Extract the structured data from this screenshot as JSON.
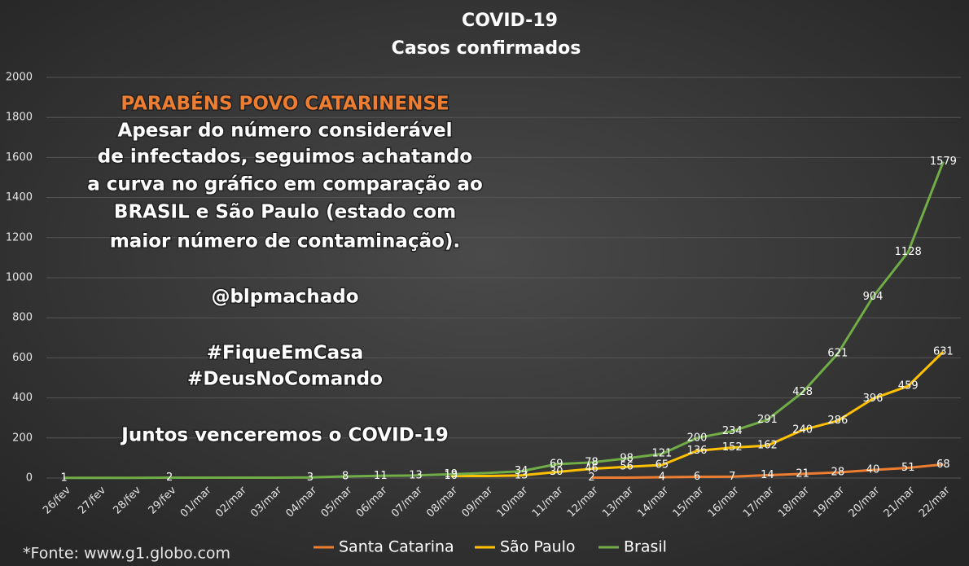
{
  "chart_data": {
    "type": "line",
    "title": "COVID-19",
    "subtitle": "Casos confirmados",
    "categories": [
      "26/fev",
      "27/fev",
      "28/fev",
      "29/fev",
      "01/mar",
      "02/mar",
      "03/mar",
      "04/mar",
      "05/mar",
      "06/mar",
      "07/mar",
      "08/mar",
      "09/mar",
      "10/mar",
      "11/mar",
      "12/mar",
      "13/mar",
      "14/mar",
      "15/mar",
      "16/mar",
      "17/mar",
      "18/mar",
      "19/mar",
      "20/mar",
      "21/mar",
      "22/mar"
    ],
    "series": [
      {
        "name": "Santa Catarina",
        "color": "#ed7d31",
        "values": [
          null,
          null,
          null,
          null,
          null,
          null,
          null,
          null,
          null,
          null,
          null,
          null,
          null,
          null,
          null,
          2,
          2,
          4,
          6,
          7,
          14,
          21,
          28,
          40,
          51,
          68
        ],
        "value_labels": [
          null,
          null,
          null,
          null,
          null,
          null,
          null,
          null,
          null,
          null,
          null,
          null,
          null,
          null,
          null,
          "2",
          null,
          "4",
          "6",
          "7",
          "14",
          "21",
          "28",
          "40",
          "51",
          "68"
        ]
      },
      {
        "name": "São Paulo",
        "color": "#ffc000",
        "values": [
          null,
          null,
          null,
          null,
          null,
          null,
          null,
          null,
          null,
          null,
          null,
          10,
          10,
          13,
          30,
          46,
          56,
          65,
          136,
          152,
          162,
          240,
          286,
          396,
          459,
          631
        ],
        "value_labels": [
          null,
          null,
          null,
          null,
          null,
          null,
          null,
          null,
          null,
          null,
          null,
          "10",
          null,
          "13",
          "30",
          "46",
          "56",
          "65",
          "136",
          "152",
          "162",
          "240",
          "286",
          "396",
          "459",
          "631"
        ]
      },
      {
        "name": "Brasil",
        "color": "#70ad47",
        "values": [
          1,
          1,
          1,
          2,
          2,
          2,
          2,
          3,
          8,
          11,
          13,
          19,
          25,
          34,
          69,
          78,
          98,
          121,
          200,
          234,
          291,
          428,
          621,
          904,
          1128,
          1579
        ],
        "value_labels": [
          "1",
          null,
          null,
          "2",
          null,
          null,
          null,
          "3",
          "8",
          "11",
          "13",
          "19",
          null,
          "34",
          "69",
          "78",
          "98",
          "121",
          "200",
          "234",
          "291",
          "428",
          "621",
          "904",
          "1128",
          "1579"
        ]
      }
    ],
    "ylim": [
      0,
      2000
    ],
    "yticks": [
      0,
      200,
      400,
      600,
      800,
      1000,
      1200,
      1400,
      1600,
      1800,
      2000
    ],
    "grid": true,
    "legend": "bottom",
    "annotations": [
      "PARABÉNS POVO CATARINENSE",
      "Apesar do número considerável",
      "de infectados, seguimos achatando",
      "a curva no gráfico em comparação ao",
      "BRASIL e São Paulo (estado com",
      "maior número de contaminação).",
      "@blpmachado",
      "#FiqueEmCasa",
      "#DeusNoComando",
      "Juntos venceremos o COVID-19"
    ],
    "source": "*Fonte: www.g1.globo.com"
  }
}
